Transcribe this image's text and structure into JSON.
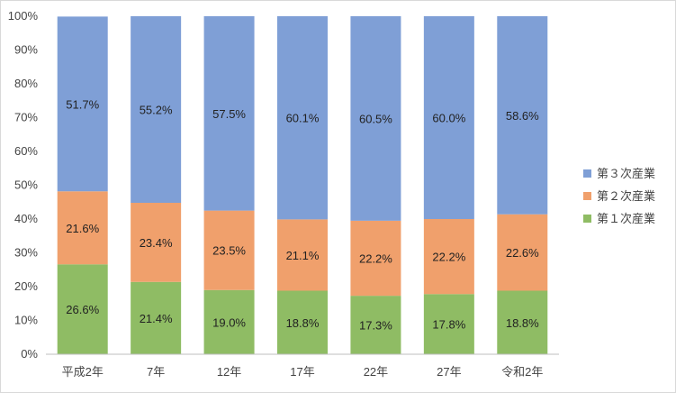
{
  "chart_data": {
    "type": "bar",
    "stacked": "percent",
    "categories": [
      "平成2年",
      "7年",
      "12年",
      "17年",
      "22年",
      "27年",
      "令和2年"
    ],
    "series": [
      {
        "name": "第１次産業",
        "color": "#8fbc64",
        "values": [
          26.6,
          21.4,
          19.0,
          18.8,
          17.3,
          17.8,
          18.8
        ],
        "labels": [
          "26.6%",
          "21.4%",
          "19.0%",
          "18.8%",
          "17.3%",
          "17.8%",
          "18.8%"
        ]
      },
      {
        "name": "第２次産業",
        "color": "#f0a06c",
        "values": [
          21.6,
          23.4,
          23.5,
          21.1,
          22.2,
          22.2,
          22.6
        ],
        "labels": [
          "21.6%",
          "23.4%",
          "23.5%",
          "21.1%",
          "22.2%",
          "22.2%",
          "22.6%"
        ]
      },
      {
        "name": "第３次産業",
        "color": "#7f9fd6",
        "values": [
          51.7,
          55.2,
          57.5,
          60.1,
          60.5,
          60.0,
          58.6
        ],
        "labels": [
          "51.7%",
          "55.2%",
          "57.5%",
          "60.1%",
          "60.5%",
          "60.0%",
          "58.6%"
        ]
      }
    ],
    "yticks": [
      "0%",
      "10%",
      "20%",
      "30%",
      "40%",
      "50%",
      "60%",
      "70%",
      "80%",
      "90%",
      "100%"
    ],
    "ylim": [
      0,
      100
    ],
    "grid": false,
    "legend": "right",
    "legend_order": [
      "第３次産業",
      "第２次産業",
      "第１次産業"
    ]
  }
}
